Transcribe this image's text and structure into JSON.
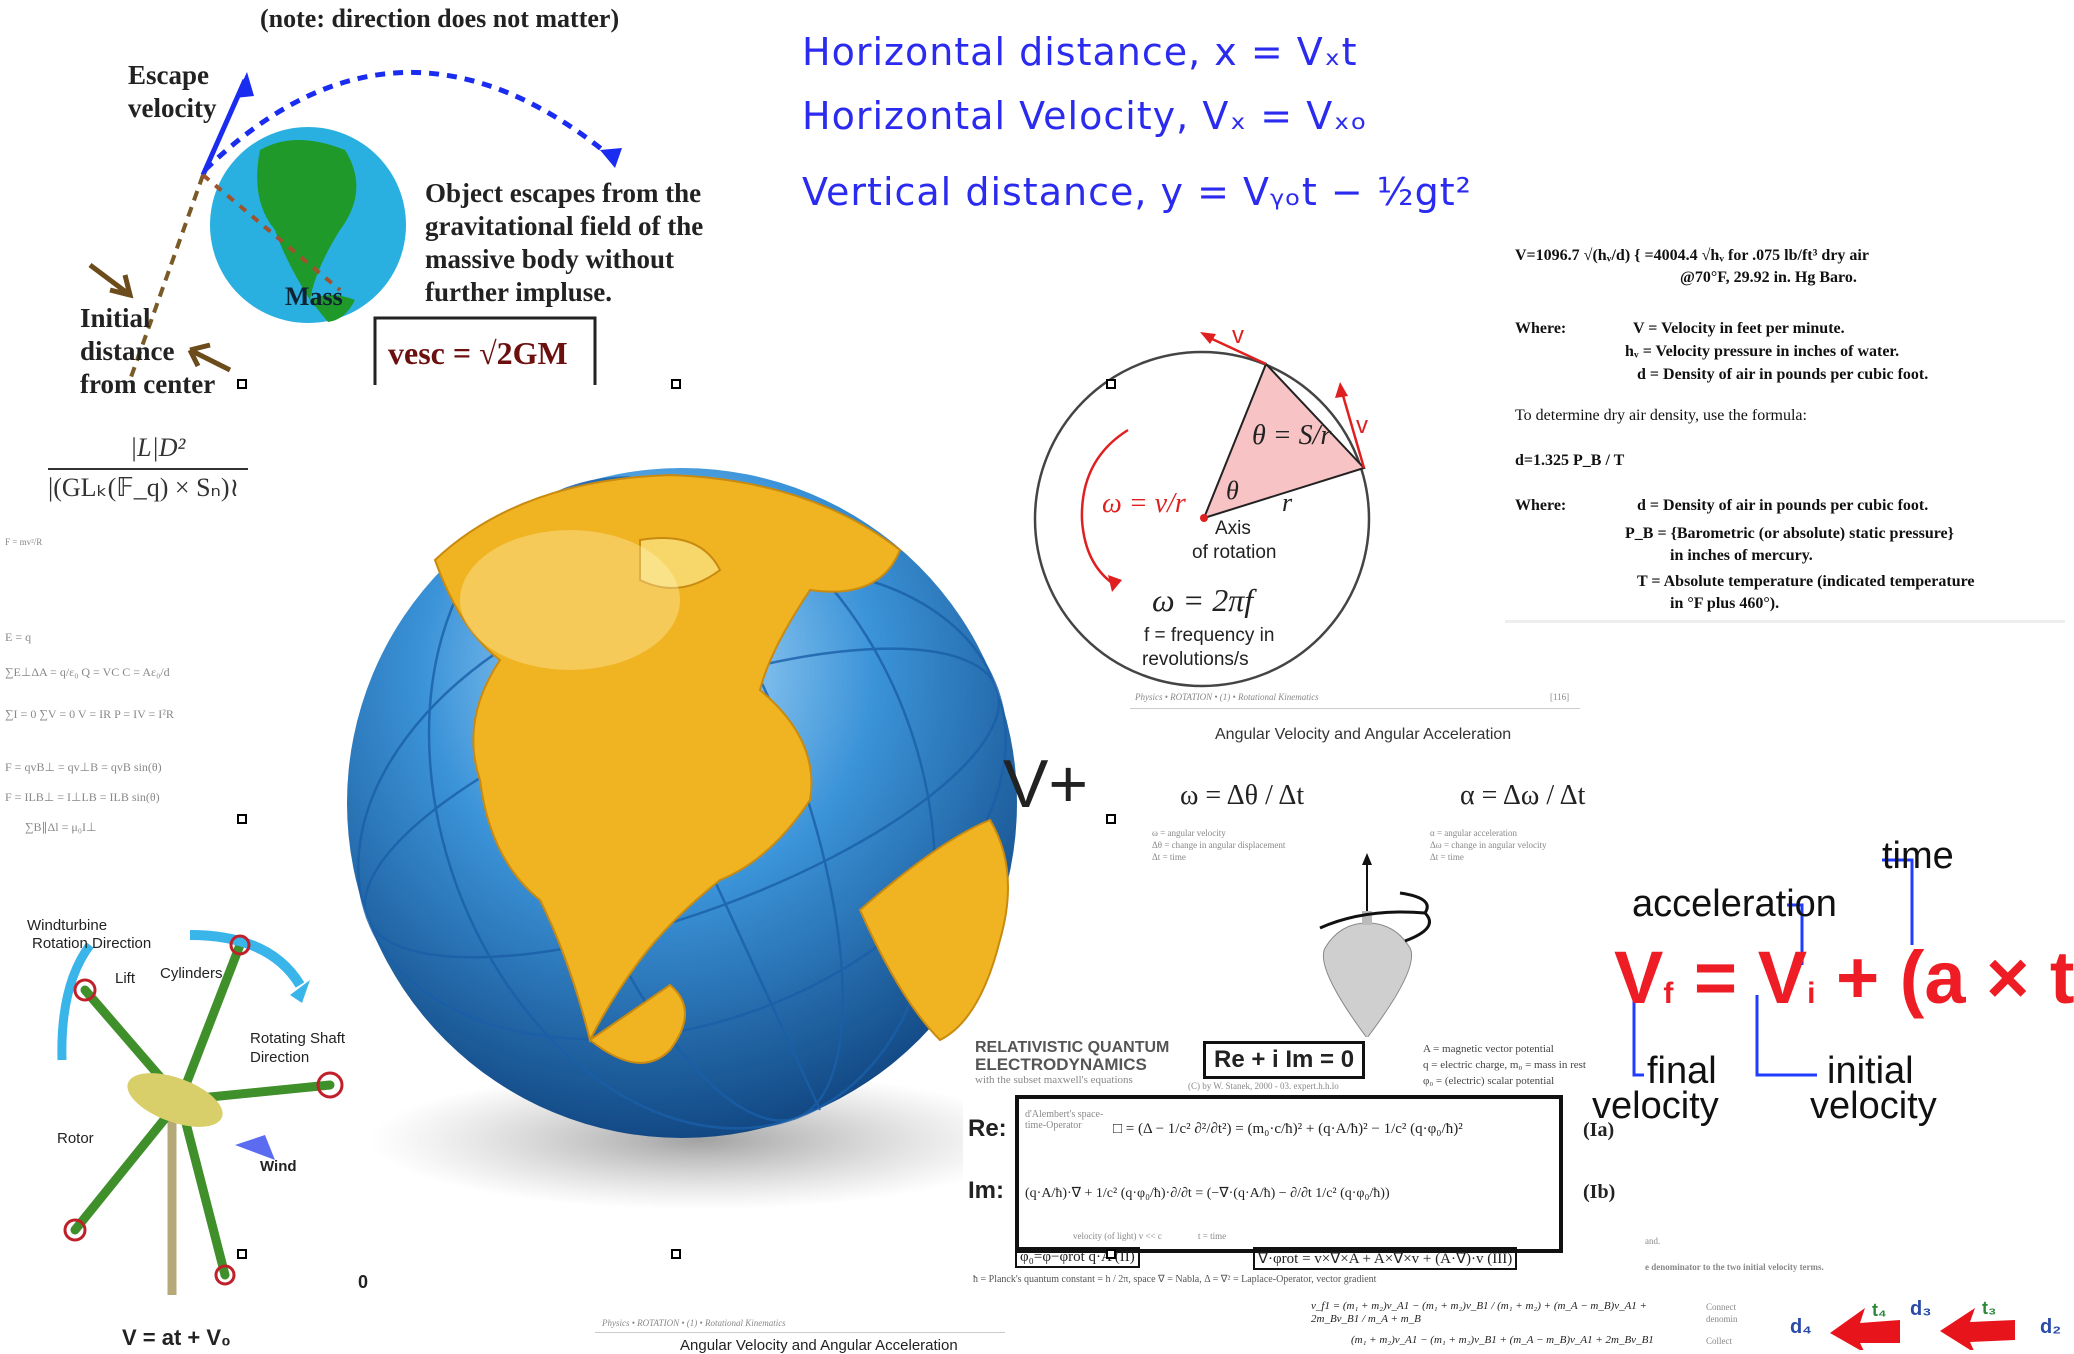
{
  "escape_panel": {
    "note": "(note: direction does not matter)",
    "escape_label": [
      "Escape",
      "velocity"
    ],
    "description": [
      "Object escapes from the",
      "gravitational field of the",
      "massive body without",
      "further impluse."
    ],
    "initial_label": [
      "Initial",
      "distance",
      "from center"
    ],
    "mass_label": "Mass",
    "formula": "vesc = √2GM"
  },
  "projectile": {
    "lines": [
      "Horizontal distance, x = Vₓt",
      "Horizontal Velocity, Vₓ = Vₓₒ",
      "Vertical distance, y = Vᵧₒt − ½gt²"
    ]
  },
  "duct": {
    "formula": "V=1096.7 √(hᵥ/d) { =4004.4 √hᵥ for .075 lb/ft³ dry air",
    "formula2": "@70°F, 29.92 in. Hg Baro.",
    "where1": "Where:",
    "defs1": [
      "V = Velocity in feet per minute.",
      "hᵥ = Velocity pressure in inches of water.",
      "d = Density of air in pounds per cubic foot."
    ],
    "intro": "To determine dry air density, use the formula:",
    "density_formula": "d=1.325 P_B / T",
    "where2": "Where:",
    "defs2": [
      "d = Density of air in pounds per cubic foot.",
      "P_B = {Barometric (or absolute) static pressure}",
      "in inches of mercury.",
      "T = Absolute temperature (indicated temperature",
      "in °F plus 460°)."
    ]
  },
  "rotation_diagram": {
    "v1": "v",
    "v2": "v",
    "theta_eq": "θ = S/r",
    "omega_eq": "ω = v/r",
    "theta": "θ",
    "r": "r",
    "axis": "Axis",
    "axis2": "of rotation",
    "omega_freq": "ω = 2πf",
    "freq1": "f = frequency in",
    "freq2": "revolutions/s",
    "accent": "#e02020",
    "fill": "#f7c3c5"
  },
  "angular_page": {
    "header": "Physics • ROTATION • (1) • Rotational Kinematics",
    "page": "[116]",
    "title": "Angular Velocity and Angular Acceleration",
    "omega": "ω = Δθ / Δt",
    "alpha": "α = Δω / Δt",
    "omega_legend": [
      "ω = angular velocity",
      "Δθ = change in angular displacement",
      "Δt = time"
    ],
    "alpha_legend": [
      "α = angular acceleration",
      "Δω = change in angular velocity",
      "Δt = time"
    ]
  },
  "v_plus": "V+",
  "quantum": {
    "title1": "RELATIVISTIC QUANTUM",
    "title2": "ELECTRODYNAMICS",
    "subtitle": "with the subset maxwell's equations",
    "main_eq": "Re + i Im = 0",
    "copyright": "(C) by W. Stanek, 2000 - 03. expert.h.h.lo",
    "defs": [
      "A = magnetic vector potential",
      "q = electric charge, m₀ = mass in rest",
      "φ₀ = (electric) scalar potential"
    ],
    "re": "Re:",
    "im": "Im:",
    "dalembert": "d'Alembert's space-time-Operator",
    "re_eq": "□ = (Δ − 1/c² ∂²/∂t²) = (m₀·c/ħ)² + (q·A/ħ)² − 1/c² (q·φ₀/ħ)²",
    "im_eq": "(q·A/ħ)·∇ + 1/c² (q·φ₀/ħ)·∂/∂t = (−∇·(q·A/ħ) − ∂/∂t 1/c² (q·φ₀/ħ))",
    "la": "(Ia)",
    "lb": "(Ib)",
    "bottom_eq1": "φ₀=φ−φrot  q·A (II)",
    "velocity_note": "velocity (of light) v << c",
    "time_note": "t = time",
    "bottom_eq2": "∇·φrot = v×∇×A + A×∇×v + (A·∇)·v (III)",
    "footer": "ħ = Planck's quantum constant = h / 2π,  space  ∇ = Nabla,  Δ = ∇² = Laplace-Operator,  vector gradient"
  },
  "kinematics": {
    "time": "time",
    "acceleration": "acceleration",
    "equation": {
      "vf": "V",
      "f": "f",
      "eq": "=",
      "vi": "V",
      "i": "i",
      "rest": "+ (a × t)"
    },
    "final": [
      "final",
      "velocity"
    ],
    "initial": [
      "initial",
      "velocity"
    ],
    "red": "#ee1c24",
    "blue": "#1f3cff"
  },
  "left_strip": {
    "numerator": "|L|D²",
    "denominator": "|(GLₖ(𝔽_q) × Sₙ)≀",
    "formulas": [
      "F = mv²/R",
      "E = q",
      "∑E⊥ΔA = q/ε₀     Q = VC     C = Aε₀/d",
      "∑I = 0   ∑V = 0   V = IR     P = IV = I²R",
      "F = qvB⊥ = qv⊥B = qvB sin(θ)",
      "F = ILB⊥ = I⊥LB = ILB sin(θ)",
      "∑B∥Δl = μ₀I⊥"
    ]
  },
  "windturbine": {
    "title": [
      "Windturbine",
      "Rotation Direction"
    ],
    "lift": "Lift",
    "cylinders": "Cylinders",
    "shaft": [
      "Rotating Shaft",
      "Direction"
    ],
    "rotor": "Rotor",
    "wind": "Wind"
  },
  "zero_label": "0",
  "v_eq": "V = at + V₀",
  "bottom_page": {
    "header": "Physics • ROTATION • (1) • Rotational Kinematics",
    "title": "Angular Velocity and Angular Acceleration"
  },
  "collision": {
    "eq1": "v_f1 = (m₁ + m₂)v_A1 − (m₁ + m₂)v_B1 / (m₁ + m₂) + (m_A − m_B)v_A1 + 2m_Bv_B1 / m_A + m_B",
    "eq2": "(m₁ + m₂)v_A1 − (m₁ + m₂)v_B1 + (m_A − m_B)v_A1 + 2m_Bv_B1",
    "side": [
      "Connect",
      "denomin",
      "Collect"
    ],
    "note1": "and.",
    "note2": "e denominator to the two initial velocity terms."
  },
  "arrows": {
    "labels": [
      "d₄",
      "t₄",
      "d₃",
      "t₃",
      "d₂"
    ],
    "color": "#e8141c"
  },
  "colors": {
    "globe_land": "#f0b321",
    "globe_sea": "#2f82c9",
    "escape_blue": "#1a2cf0"
  }
}
